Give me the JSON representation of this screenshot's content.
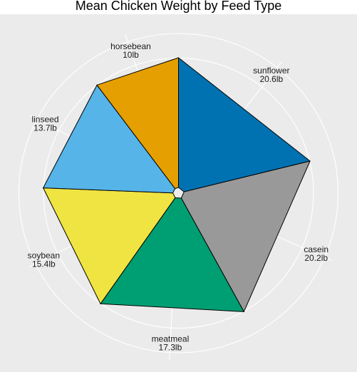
{
  "chart_data": {
    "type": "pie",
    "title": "Mean Chicken Weight by Feed Type",
    "unit": "lb",
    "slices": [
      {
        "label": "sunflower",
        "value": 20.6,
        "value_text": "20.6lb",
        "color": "#0072B2"
      },
      {
        "label": "casein",
        "value": 20.2,
        "value_text": "20.2lb",
        "color": "#999999"
      },
      {
        "label": "meatmeal",
        "value": 17.3,
        "value_text": "17.3lb",
        "color": "#009E73"
      },
      {
        "label": "soybean",
        "value": 15.4,
        "value_text": "15.4lb",
        "color": "#F0E442"
      },
      {
        "label": "linseed",
        "value": 13.7,
        "value_text": "13.7lb",
        "color": "#56B4E9"
      },
      {
        "label": "horsebean",
        "value": 10,
        "value_text": "10lb",
        "color": "#E69F00"
      }
    ],
    "background": "#EBEBEB",
    "grid": true,
    "slice_outline": "#000000"
  }
}
